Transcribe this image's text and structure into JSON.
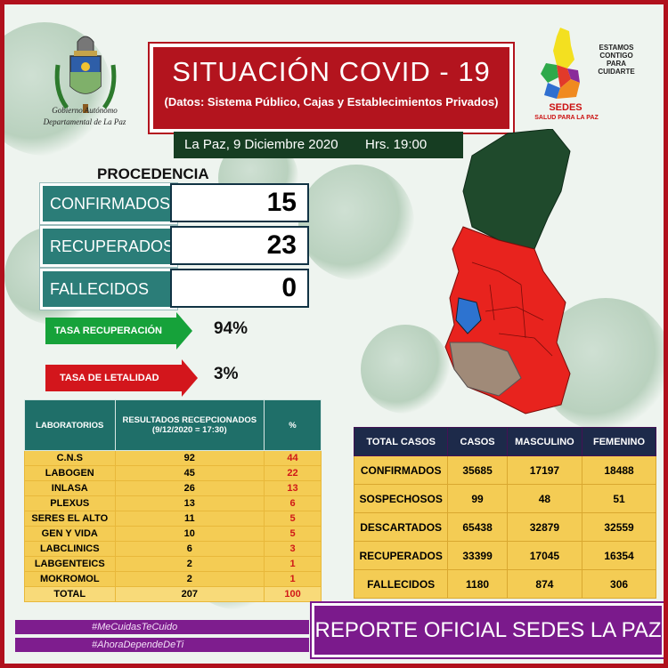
{
  "header": {
    "title": "SITUACIÓN  COVID - 19",
    "subtitle": "(Datos: Sistema Público, Cajas y Establecimientos Privados)",
    "date": "La Paz, 9 Diciembre 2020",
    "time": "Hrs. 19:00"
  },
  "logo_left": {
    "caption_line1": "Gobierno Autónomo",
    "caption_line2": "Departamental de La Paz"
  },
  "logo_right": {
    "text_line1": "ESTAMOS",
    "text_line2": "CONTIGO",
    "text_line3": "PARA",
    "text_line4": "CUIDARTE",
    "name": "SEDES",
    "tagline": "SALUD PARA LA PAZ"
  },
  "procedencia": {
    "heading": "PROCEDENCIA",
    "rows": [
      {
        "label": "CONFIRMADOS",
        "value": "15"
      },
      {
        "label": "RECUPERADOS",
        "value": "23"
      },
      {
        "label": "FALLECIDOS",
        "value": "0"
      }
    ]
  },
  "rates": {
    "recovery_label": "TASA RECUPERACIÓN",
    "recovery_value": "94%",
    "lethality_label": "TASA  DE LETALIDAD",
    "lethality_value": "3%"
  },
  "labs": {
    "headers": [
      "LABORATORIOS",
      "RESULTADOS RECEPCIONADOS",
      "(9/12/2020 = 17:30)",
      "%"
    ],
    "rows": [
      {
        "name": "C.N.S",
        "results": "92",
        "pct": "44"
      },
      {
        "name": "LABOGEN",
        "results": "45",
        "pct": "22"
      },
      {
        "name": "INLASA",
        "results": "26",
        "pct": "13"
      },
      {
        "name": "PLEXUS",
        "results": "13",
        "pct": "6"
      },
      {
        "name": "SERES EL ALTO",
        "results": "11",
        "pct": "5"
      },
      {
        "name": "GEN Y VIDA",
        "results": "10",
        "pct": "5"
      },
      {
        "name": "LABCLINICS",
        "results": "6",
        "pct": "3"
      },
      {
        "name": "LABGENTEICS",
        "results": "2",
        "pct": "1"
      },
      {
        "name": "MOKROMOL",
        "results": "2",
        "pct": "1"
      }
    ],
    "total": {
      "name": "TOTAL",
      "results": "207",
      "pct": "100"
    }
  },
  "totals": {
    "headers": [
      "TOTAL CASOS",
      "CASOS",
      "MASCULINO",
      "FEMENINO"
    ],
    "rows": [
      {
        "label": "CONFIRMADOS",
        "casos": "35685",
        "masculino": "17197",
        "femenino": "18488"
      },
      {
        "label": "SOSPECHOSOS",
        "casos": "99",
        "masculino": "48",
        "femenino": "51"
      },
      {
        "label": "DESCARTADOS",
        "casos": "65438",
        "masculino": "32879",
        "femenino": "32559"
      },
      {
        "label": "RECUPERADOS",
        "casos": "33399",
        "masculino": "17045",
        "femenino": "16354"
      },
      {
        "label": "FALLECIDOS",
        "casos": "1180",
        "masculino": "874",
        "femenino": "306"
      }
    ]
  },
  "hashtags": [
    "#MeCuidasTeCuido",
    "#AhoraDependeDeTi"
  ],
  "footer": {
    "report": "REPORTE OFICIAL SEDES LA PAZ"
  },
  "colors": {
    "title_red": "#b3141e",
    "teal": "#2b7d78",
    "recovery_green": "#16a23a",
    "lethality_red": "#d3161c",
    "table_yellow": "#f4cc54",
    "purple": "#7b1a8c",
    "map_north": "#1f4a2c",
    "map_main": "#e8231e",
    "map_lake": "#2d73d0"
  }
}
